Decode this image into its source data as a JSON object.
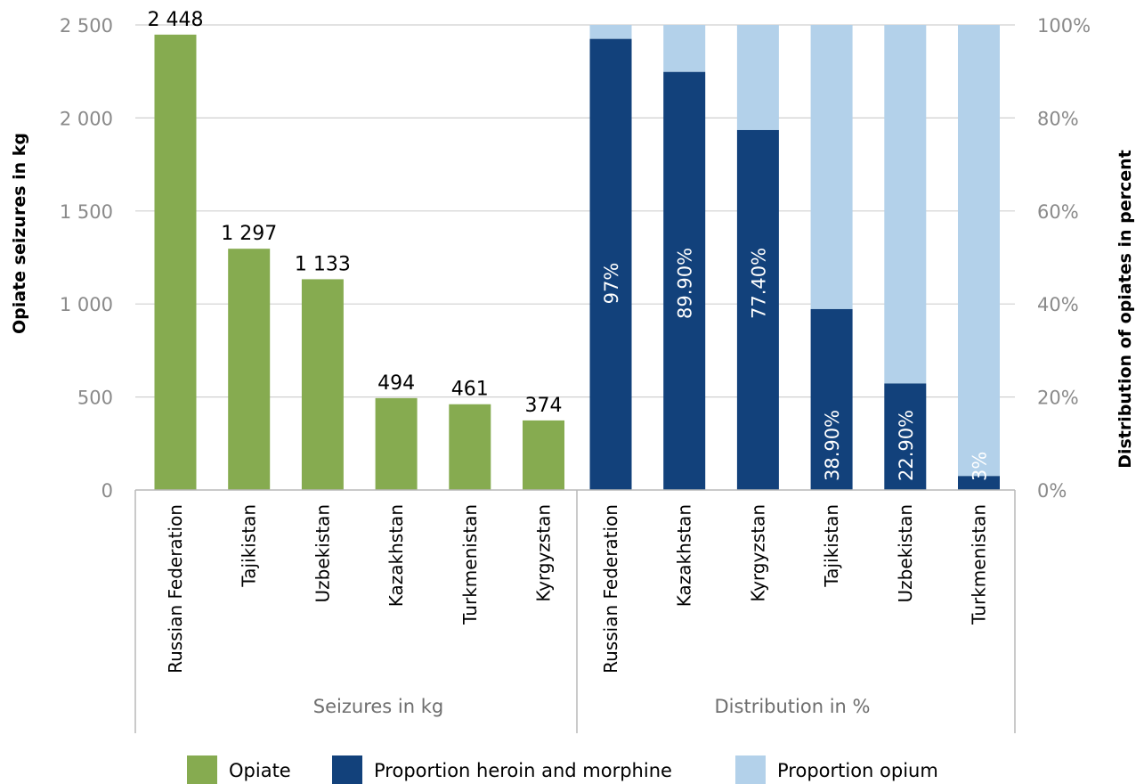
{
  "colors": {
    "opiate": "#86ab50",
    "heroin_morphine": "#12417b",
    "opium": "#b3d1ea",
    "grid": "#d0d0d0",
    "axis": "#b8b8b8"
  },
  "legend": [
    {
      "label": "Opiate",
      "color_key": "opiate"
    },
    {
      "label": "Proportion heroin and morphine",
      "color_key": "heroin_morphine"
    },
    {
      "label": "Proportion opium",
      "color_key": "opium"
    }
  ],
  "chart_data": {
    "type": "bar",
    "y_left": {
      "label": "Opiate seizures in kg",
      "range": [
        0,
        2500
      ],
      "ticks": [
        0,
        500,
        1000,
        1500,
        2000,
        2500
      ],
      "tick_labels": [
        "0",
        "500",
        "1 000",
        "1 500",
        "2 000",
        "2 500"
      ]
    },
    "y_right": {
      "label": "Distribution of opiates in percent",
      "range": [
        0,
        100
      ],
      "ticks": [
        0,
        20,
        40,
        60,
        80,
        100
      ],
      "tick_labels": [
        "0%",
        "20%",
        "40%",
        "60%",
        "80%",
        "100%"
      ]
    },
    "grid": true,
    "legend_position": "bottom",
    "groups": [
      {
        "label": "Seizures in kg",
        "type": "bar",
        "categories": [
          "Russian Federation",
          "Tajikistan",
          "Uzbekistan",
          "Kazakhstan",
          "Turkmenistan",
          "Kyrgyzstan"
        ],
        "series": [
          {
            "name": "Opiate",
            "values": [
              2448,
              1297,
              1133,
              494,
              461,
              374
            ],
            "data_labels": [
              "2 448",
              "1 297",
              "1 133",
              "494",
              "461",
              "374"
            ]
          }
        ]
      },
      {
        "label": "Distribution in %",
        "type": "stacked_bar",
        "categories": [
          "Russian Federation",
          "Kazakhstan",
          "Kyrgyzstan",
          "Tajikistan",
          "Uzbekistan",
          "Turkmenistan"
        ],
        "series": [
          {
            "name": "Proportion heroin and morphine",
            "values": [
              97,
              89.9,
              77.4,
              38.9,
              22.9,
              3
            ],
            "data_labels": [
              "97%",
              "89.90%",
              "77.40%",
              "38.90%",
              "22.90%",
              "3%"
            ]
          },
          {
            "name": "Proportion opium",
            "values": [
              3,
              10.1,
              22.6,
              61.1,
              77.1,
              97
            ]
          }
        ]
      }
    ]
  }
}
